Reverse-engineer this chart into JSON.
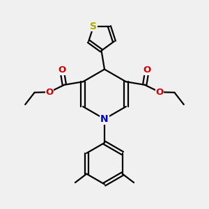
{
  "bg_color": "#f0f0f0",
  "bond_color": "#000000",
  "bond_width": 1.6,
  "N_color": "#0000cc",
  "O_color": "#cc0000",
  "S_color": "#aaaa00",
  "figsize": [
    3.0,
    3.0
  ],
  "dpi": 100,
  "xlim": [
    0,
    10
  ],
  "ylim": [
    0,
    10
  ]
}
